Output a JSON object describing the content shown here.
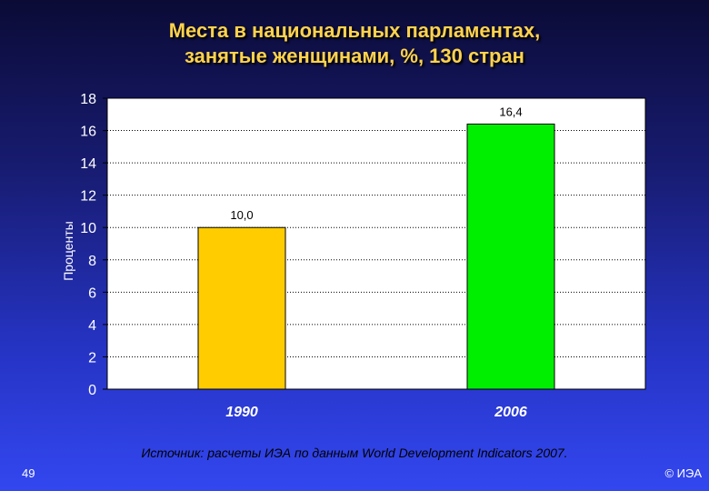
{
  "slide": {
    "title_line1": "Места в национальных парламентах,",
    "title_line2": "занятые женщинами, %, 130 стран",
    "source": "Источник: расчеты ИЭА по данным World Development Indicators 2007.",
    "page_number": "49",
    "copyright": "© ИЭА"
  },
  "chart_data": {
    "type": "bar",
    "title": "Места в национальных парламентах, занятые женщинами, %, 130 стран",
    "xlabel": "",
    "ylabel": "Проценты",
    "categories": [
      "1990",
      "2006"
    ],
    "values": [
      10.0,
      16.4
    ],
    "data_labels": [
      "10,0",
      "16,4"
    ],
    "bar_colors": [
      "#ffcc00",
      "#00ee00"
    ],
    "ylim": [
      0,
      18
    ],
    "yticks": [
      0,
      2,
      4,
      6,
      8,
      10,
      12,
      14,
      16,
      18
    ],
    "grid": "horizontal dotted",
    "legend": "none",
    "plot_background": "#ffffff"
  }
}
